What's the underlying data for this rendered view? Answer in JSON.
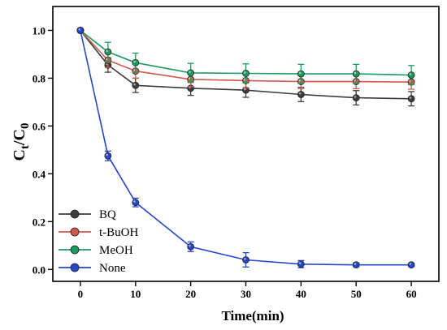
{
  "chart_data": {
    "type": "line",
    "xlabel": "Time(min)",
    "ylabel": {
      "base": "C",
      "sub1": "t",
      "slash": "/C",
      "sub2": "0"
    },
    "xlim": [
      -5,
      65
    ],
    "ylim": [
      -0.05,
      1.1
    ],
    "xticks": [
      0,
      10,
      20,
      30,
      40,
      50,
      60
    ],
    "yticks": [
      0.0,
      0.2,
      0.4,
      0.6,
      0.8,
      1.0
    ],
    "ytick_labels": [
      "0.0",
      "0.2",
      "0.4",
      "0.6",
      "0.8",
      "1.0"
    ],
    "legend_position": "bottom-left",
    "series": [
      {
        "name": "BQ",
        "color": "#3d3d3d",
        "x": [
          0,
          5,
          10,
          20,
          30,
          40,
          50,
          60
        ],
        "values": [
          1.0,
          0.855,
          0.77,
          0.758,
          0.75,
          0.732,
          0.718,
          0.714
        ],
        "errors": [
          0.0,
          0.03,
          0.03,
          0.03,
          0.03,
          0.03,
          0.03,
          0.03
        ]
      },
      {
        "name": "t-BuOH",
        "color": "#cf5a4f",
        "x": [
          0,
          5,
          10,
          20,
          30,
          40,
          50,
          60
        ],
        "values": [
          1.0,
          0.875,
          0.83,
          0.795,
          0.79,
          0.786,
          0.786,
          0.784
        ],
        "errors": [
          0.0,
          0.03,
          0.03,
          0.03,
          0.03,
          0.03,
          0.03,
          0.03
        ]
      },
      {
        "name": "MeOH",
        "color": "#1f9a5e",
        "x": [
          0,
          5,
          10,
          20,
          30,
          40,
          50,
          60
        ],
        "values": [
          1.0,
          0.91,
          0.865,
          0.822,
          0.82,
          0.818,
          0.818,
          0.813
        ],
        "errors": [
          0.0,
          0.04,
          0.04,
          0.04,
          0.04,
          0.04,
          0.04,
          0.04
        ]
      },
      {
        "name": "None",
        "color": "#2446c8",
        "x": [
          0,
          5,
          10,
          20,
          30,
          40,
          50,
          60
        ],
        "values": [
          1.0,
          0.475,
          0.28,
          0.095,
          0.04,
          0.022,
          0.019,
          0.019
        ],
        "errors": [
          0.0,
          0.02,
          0.018,
          0.02,
          0.03,
          0.015,
          0.008,
          0.006
        ]
      }
    ]
  }
}
